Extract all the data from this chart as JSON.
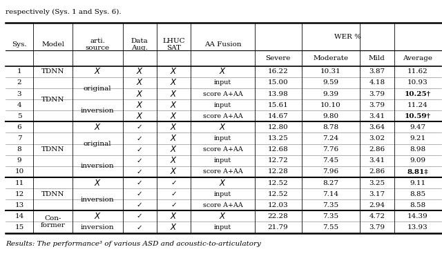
{
  "title_above": "respectively (Sys. 1 and Sys. 6).",
  "footer_text": "Results: The performance³ of various ASD and acoustic-to-articulatory",
  "rows": [
    {
      "sys": "1",
      "arti": "X",
      "aug": "X",
      "sat": "X",
      "fusion": "X",
      "severe": "16.22",
      "moderate": "10.31",
      "mild": "3.87",
      "avg": "11.62",
      "avg_bold": false
    },
    {
      "sys": "2",
      "arti": "original",
      "aug": "X",
      "sat": "X",
      "fusion": "input",
      "severe": "15.00",
      "moderate": "9.59",
      "mild": "4.18",
      "avg": "10.93",
      "avg_bold": false
    },
    {
      "sys": "3",
      "arti": "original",
      "aug": "X",
      "sat": "X",
      "fusion": "score A+AA",
      "severe": "13.98",
      "moderate": "9.39",
      "mild": "3.79",
      "avg": "10.25",
      "avg_bold": true,
      "avg_sup": "†"
    },
    {
      "sys": "4",
      "arti": "inversion",
      "aug": "X",
      "sat": "X",
      "fusion": "input",
      "severe": "15.61",
      "moderate": "10.10",
      "mild": "3.79",
      "avg": "11.24",
      "avg_bold": false
    },
    {
      "sys": "5",
      "arti": "inversion",
      "aug": "X",
      "sat": "X",
      "fusion": "score A+AA",
      "severe": "14.67",
      "moderate": "9.80",
      "mild": "3.41",
      "avg": "10.59",
      "avg_bold": true,
      "avg_sup": "†"
    },
    {
      "sys": "6",
      "arti": "X",
      "aug": "C",
      "sat": "X",
      "fusion": "X",
      "severe": "12.80",
      "moderate": "8.78",
      "mild": "3.64",
      "avg": "9.47",
      "avg_bold": false
    },
    {
      "sys": "7",
      "arti": "original",
      "aug": "C",
      "sat": "X",
      "fusion": "input",
      "severe": "13.25",
      "moderate": "7.24",
      "mild": "3.02",
      "avg": "9.21",
      "avg_bold": false
    },
    {
      "sys": "8",
      "arti": "original",
      "aug": "C",
      "sat": "X",
      "fusion": "score A+AA",
      "severe": "12.68",
      "moderate": "7.76",
      "mild": "2.86",
      "avg": "8.98",
      "avg_bold": false
    },
    {
      "sys": "9",
      "arti": "inversion",
      "aug": "C",
      "sat": "X",
      "fusion": "input",
      "severe": "12.72",
      "moderate": "7.45",
      "mild": "3.41",
      "avg": "9.09",
      "avg_bold": false
    },
    {
      "sys": "10",
      "arti": "inversion",
      "aug": "C",
      "sat": "X",
      "fusion": "score A+AA",
      "severe": "12.28",
      "moderate": "7.96",
      "mild": "2.86",
      "avg": "8.81",
      "avg_bold": true,
      "avg_sup": "‡"
    },
    {
      "sys": "11",
      "arti": "X",
      "aug": "C",
      "sat": "C",
      "fusion": "X",
      "severe": "12.52",
      "moderate": "8.27",
      "mild": "3.25",
      "avg": "9.11",
      "avg_bold": false
    },
    {
      "sys": "12",
      "arti": "inversion",
      "aug": "C",
      "sat": "C",
      "fusion": "input",
      "severe": "12.52",
      "moderate": "7.14",
      "mild": "3.17",
      "avg": "8.85",
      "avg_bold": false
    },
    {
      "sys": "13",
      "arti": "inversion",
      "aug": "C",
      "sat": "C",
      "fusion": "score A+AA",
      "severe": "12.03",
      "moderate": "7.35",
      "mild": "2.94",
      "avg": "8.58",
      "avg_bold": false
    },
    {
      "sys": "14",
      "arti": "X",
      "aug": "C",
      "sat": "X",
      "fusion": "X",
      "severe": "22.28",
      "moderate": "7.35",
      "mild": "4.72",
      "avg": "14.39",
      "avg_bold": false
    },
    {
      "sys": "15",
      "arti": "inversion",
      "aug": "C",
      "sat": "X",
      "fusion": "input",
      "severe": "21.79",
      "moderate": "7.55",
      "mild": "3.79",
      "avg": "13.93",
      "avg_bold": false
    }
  ],
  "group_thick_after": [
    4,
    9,
    12
  ],
  "fs": 7.5,
  "fs_small": 6.8
}
